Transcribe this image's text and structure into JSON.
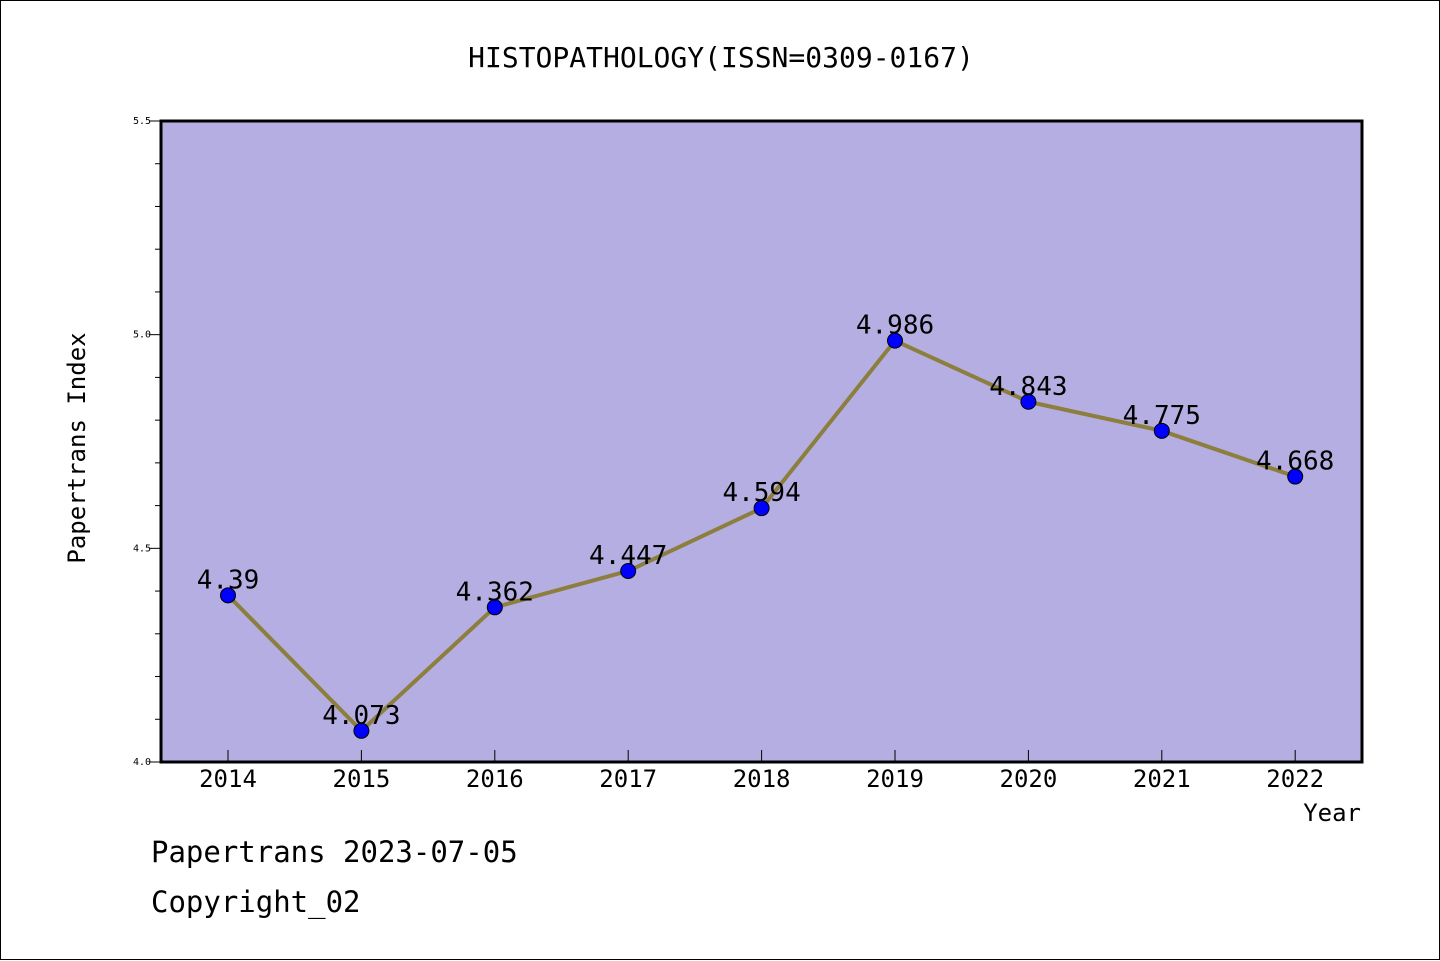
{
  "footer": {
    "line1": "Papertrans 2023-07-05",
    "line2": "Copyright_02"
  },
  "colors": {
    "plot_background": "#b5aee2",
    "line": "#8c7e3c",
    "marker": "#0000ff"
  },
  "chart_data": {
    "type": "line",
    "title": "HISTOPATHOLOGY(ISSN=0309-0167)",
    "xlabel": "Year",
    "ylabel": "Papertrans Index",
    "categories": [
      "2014",
      "2015",
      "2016",
      "2017",
      "2018",
      "2019",
      "2020",
      "2021",
      "2022"
    ],
    "series": [
      {
        "values": [
          4.39,
          4.073,
          4.362,
          4.447,
          4.594,
          4.986,
          4.843,
          4.775,
          4.668
        ],
        "labels": [
          "4.39",
          "4.073",
          "4.362",
          "4.447",
          "4.594",
          "4.986",
          "4.843",
          "4.775",
          "4.668"
        ]
      }
    ],
    "ylim": [
      4.0,
      5.5
    ],
    "yticks": [
      "4.0",
      "4.5",
      "5.0",
      "5.5"
    ],
    "grid": false,
    "legend": "none"
  }
}
